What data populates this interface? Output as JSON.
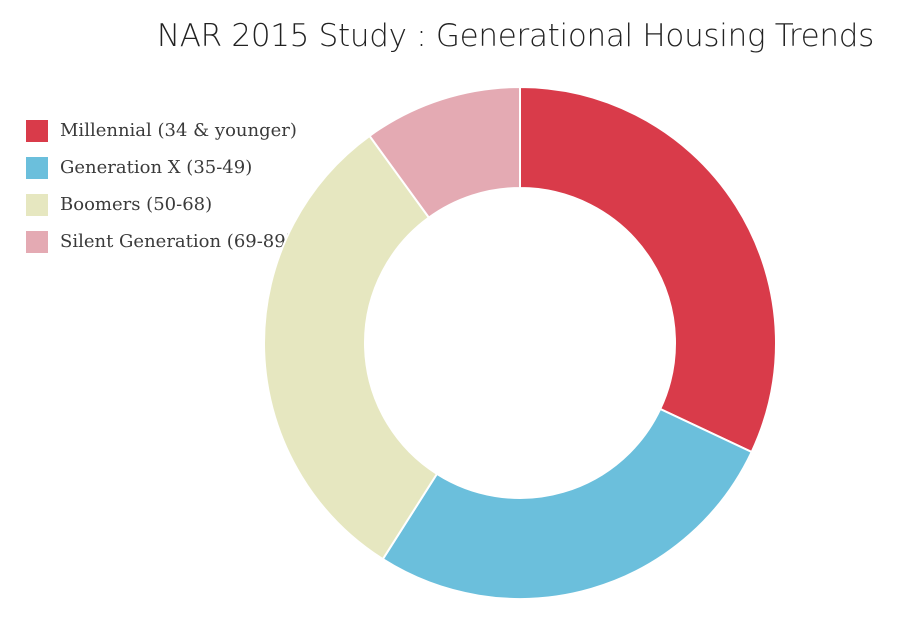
{
  "chart_data": {
    "type": "pie",
    "variant": "donut",
    "title": "NAR 2015 Study : Generational Housing Trends",
    "legend_position": "top-left",
    "series": [
      {
        "name": "Millennial (34 & younger)",
        "value": 32,
        "color": "#d93b4a"
      },
      {
        "name": "Generation X (35-49)",
        "value": 27,
        "color": "#6bbfdc"
      },
      {
        "name": "Boomers (50-68)",
        "value": 31,
        "color": "#e6e7c0"
      },
      {
        "name": "Silent Generation (69-89)",
        "value": 10,
        "color": "#e4aab3"
      }
    ]
  }
}
